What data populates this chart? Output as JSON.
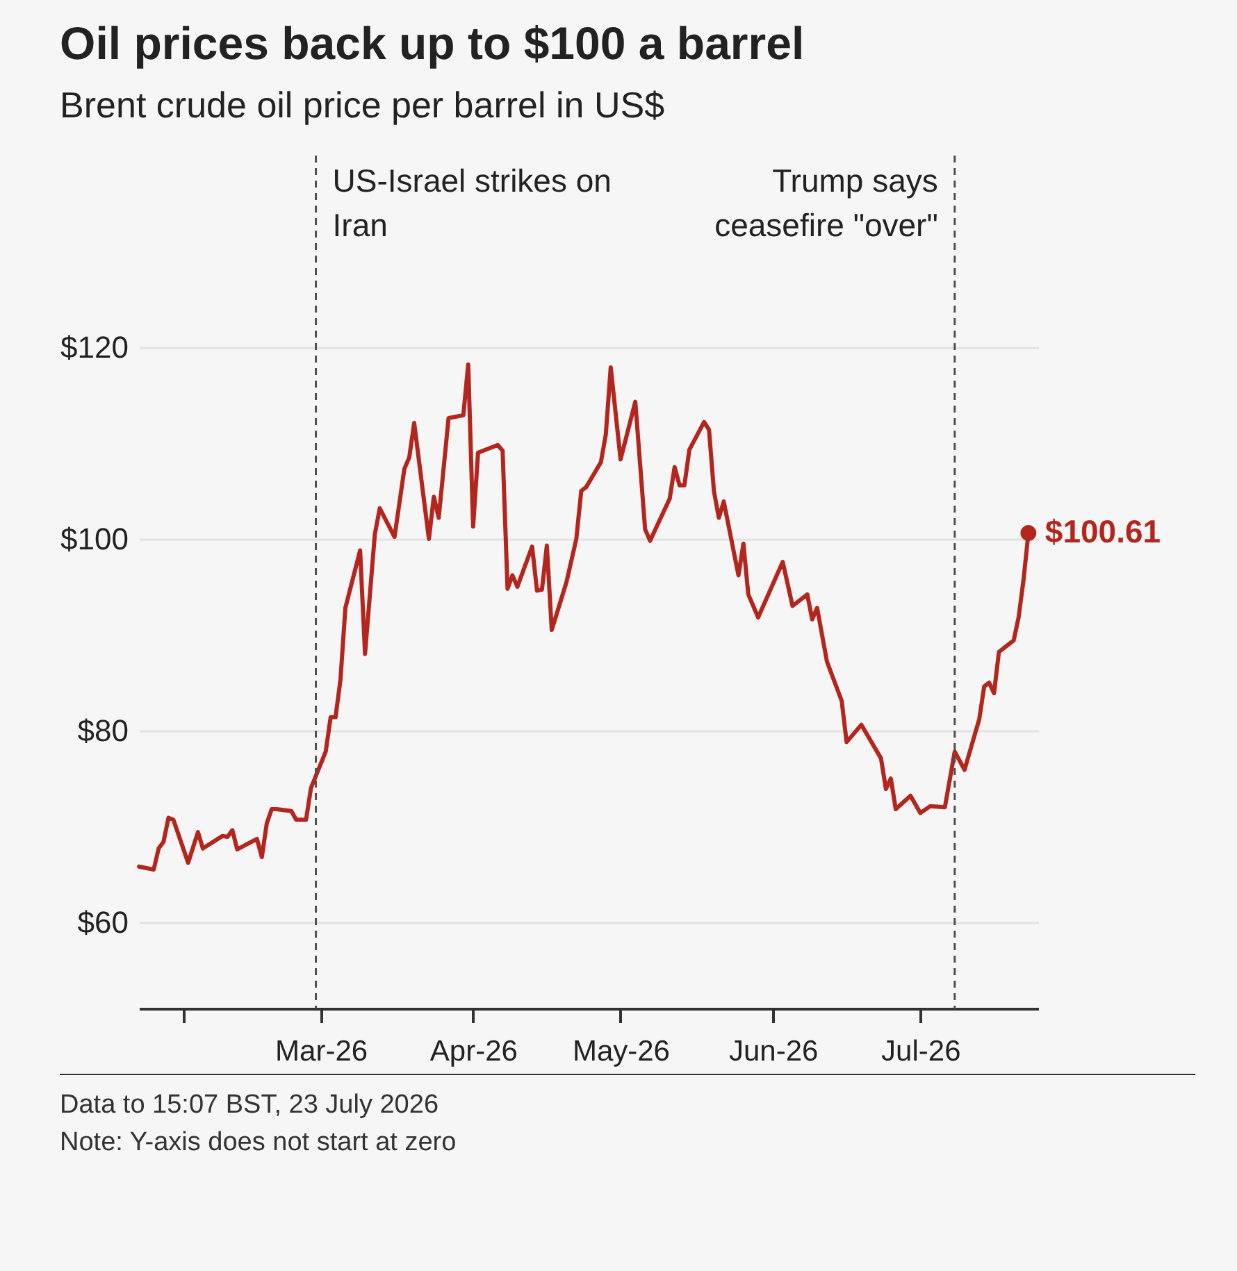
{
  "chart_data": {
    "type": "line",
    "title": "Oil prices back up to $100 a barrel",
    "subtitle": "Brent crude oil price per barrel in US$",
    "x": [
      "2026-01-23",
      "2026-01-26",
      "2026-01-27",
      "2026-01-28",
      "2026-01-29",
      "2026-01-30",
      "2026-02-02",
      "2026-02-04",
      "2026-02-05",
      "2026-02-09",
      "2026-02-10",
      "2026-02-11",
      "2026-02-12",
      "2026-02-16",
      "2026-02-17",
      "2026-02-18",
      "2026-02-19",
      "2026-02-20",
      "2026-02-23",
      "2026-02-24",
      "2026-02-26",
      "2026-02-27",
      "2026-03-02",
      "2026-03-03",
      "2026-03-04",
      "2026-03-05",
      "2026-03-06",
      "2026-03-09",
      "2026-03-10",
      "2026-03-12",
      "2026-03-13",
      "2026-03-16",
      "2026-03-18",
      "2026-03-19",
      "2026-03-20",
      "2026-03-23",
      "2026-03-24",
      "2026-03-25",
      "2026-03-27",
      "2026-03-30",
      "2026-03-31",
      "2026-04-01",
      "2026-04-02",
      "2026-04-06",
      "2026-04-07",
      "2026-04-08",
      "2026-04-09",
      "2026-04-10",
      "2026-04-13",
      "2026-04-14",
      "2026-04-15",
      "2026-04-16",
      "2026-04-17",
      "2026-04-20",
      "2026-04-22",
      "2026-04-23",
      "2026-04-24",
      "2026-04-27",
      "2026-04-28",
      "2026-04-29",
      "2026-05-01",
      "2026-05-04",
      "2026-05-06",
      "2026-05-07",
      "2026-05-11",
      "2026-05-12",
      "2026-05-13",
      "2026-05-14",
      "2026-05-15",
      "2026-05-18",
      "2026-05-19",
      "2026-05-20",
      "2026-05-21",
      "2026-05-22",
      "2026-05-25",
      "2026-05-26",
      "2026-05-27",
      "2026-05-29",
      "2026-06-03",
      "2026-06-05",
      "2026-06-08",
      "2026-06-09",
      "2026-06-10",
      "2026-06-12",
      "2026-06-15",
      "2026-06-16",
      "2026-06-19",
      "2026-06-23",
      "2026-06-24",
      "2026-06-25",
      "2026-06-26",
      "2026-06-29",
      "2026-07-01",
      "2026-07-03",
      "2026-07-06",
      "2026-07-07",
      "2026-07-08",
      "2026-07-10",
      "2026-07-13",
      "2026-07-14",
      "2026-07-15",
      "2026-07-16",
      "2026-07-17",
      "2026-07-20",
      "2026-07-21",
      "2026-07-22",
      "2026-07-23"
    ],
    "series": [
      {
        "color": "#b3261e",
        "values": [
          65.8,
          65.5,
          67.7,
          68.4,
          70.9,
          70.7,
          66.2,
          69.4,
          67.7,
          69.0,
          68.9,
          69.6,
          67.6,
          68.7,
          66.8,
          70.3,
          71.8,
          71.8,
          71.6,
          70.7,
          70.7,
          74.0,
          77.8,
          81.4,
          81.4,
          85.3,
          92.8,
          98.8,
          88.0,
          100.5,
          103.2,
          100.2,
          107.3,
          108.5,
          112.1,
          100.0,
          104.4,
          102.2,
          112.6,
          112.9,
          118.2,
          101.3,
          109.0,
          109.8,
          109.2,
          94.8,
          96.2,
          95.0,
          99.2,
          94.6,
          94.7,
          99.3,
          90.5,
          95.5,
          100.0,
          105.0,
          105.4,
          108.0,
          110.9,
          117.9,
          108.3,
          114.3,
          101.0,
          99.8,
          104.2,
          107.5,
          105.6,
          105.6,
          109.3,
          112.2,
          111.4,
          105.0,
          102.2,
          103.9,
          96.2,
          99.5,
          94.2,
          91.8,
          97.6,
          93.0,
          94.2,
          91.6,
          92.8,
          87.2,
          83.1,
          78.8,
          80.6,
          77.1,
          73.9,
          75.0,
          71.8,
          73.2,
          71.4,
          72.1,
          72.0,
          74.9,
          77.8,
          75.9,
          81.2,
          84.6,
          85.0,
          83.9,
          88.2,
          89.4,
          91.8,
          95.7,
          100.61
        ]
      }
    ],
    "xlim": [
      "2026-01-23",
      "2026-07-25"
    ],
    "xticks": [
      {
        "value": "2026-02-01",
        "label": null
      },
      {
        "value": "2026-03-01",
        "label": "Mar-26"
      },
      {
        "value": "2026-04-01",
        "label": "Apr-26"
      },
      {
        "value": "2026-05-01",
        "label": "May-26"
      },
      {
        "value": "2026-06-01",
        "label": "Jun-26"
      },
      {
        "value": "2026-07-01",
        "label": "Jul-26"
      }
    ],
    "ylim": [
      51,
      140
    ],
    "yticks": [
      {
        "value": 60,
        "label": "$60"
      },
      {
        "value": 80,
        "label": "$80"
      },
      {
        "value": 100,
        "label": "$100"
      },
      {
        "value": 120,
        "label": "$120"
      }
    ],
    "grid": "y",
    "ref_lines": [
      {
        "axis": "x",
        "value": "2026-02-28",
        "label": "US-Israel strikes on Iran",
        "line_style": "dashed",
        "color": "#505050"
      },
      {
        "axis": "x",
        "value": "2026-07-08",
        "label": "Trump says ceasefire \"over\"",
        "line_style": "dashed",
        "color": "#505050"
      }
    ],
    "annotations": [
      {
        "text": "$100.61",
        "x": "2026-07-23",
        "y": 100.61
      },
      "Data to 15:07 BST, 23 July 2026",
      "Note: Y-axis does not start at zero"
    ]
  }
}
